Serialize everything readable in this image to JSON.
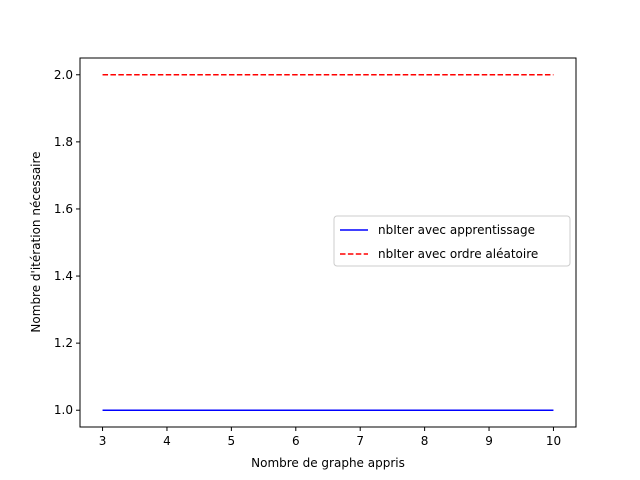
{
  "chart_data": {
    "type": "line",
    "title": "",
    "xlabel": "Nombre de graphe appris",
    "ylabel": "Nombre d'itération nécessaire",
    "xlim": [
      2.65,
      10.35
    ],
    "ylim": [
      0.95,
      2.05
    ],
    "x_ticks": [
      "3",
      "4",
      "5",
      "6",
      "7",
      "8",
      "9",
      "10"
    ],
    "y_ticks": [
      "1.0",
      "1.2",
      "1.4",
      "1.6",
      "1.8",
      "2.0"
    ],
    "x": [
      3,
      4,
      5,
      6,
      7,
      8,
      9,
      10
    ],
    "grid": false,
    "legend_position": "center-right",
    "series": [
      {
        "name": "nbIter avec apprentissage",
        "values": [
          1,
          1,
          1,
          1,
          1,
          1,
          1,
          1
        ],
        "color": "#0000ff",
        "style": "solid"
      },
      {
        "name": "nbIter avec ordre aléatoire",
        "values": [
          2,
          2,
          2,
          2,
          2,
          2,
          2,
          2
        ],
        "color": "#ff0000",
        "style": "dashed"
      }
    ]
  }
}
